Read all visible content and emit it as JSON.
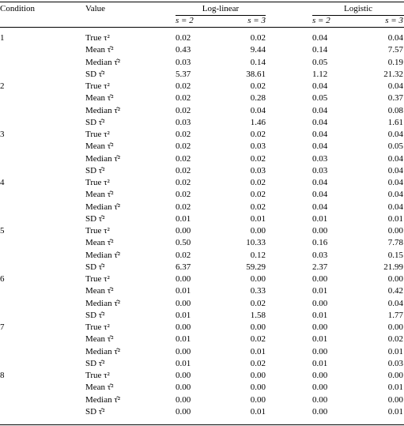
{
  "table": {
    "header": {
      "columns": [
        "Condition",
        "Value"
      ],
      "groups": [
        "Log-linear",
        "Logistic"
      ],
      "subcolumns": [
        "s = 2",
        "s = 3",
        "s = 2",
        "s = 3"
      ]
    },
    "rows": [
      {
        "condition": "1",
        "values": [
          {
            "label": "True τ²",
            "cells": [
              "0.02",
              "0.02",
              "0.04",
              "0.04"
            ]
          },
          {
            "label": "Mean τ̂²",
            "cells": [
              "0.43",
              "9.44",
              "0.14",
              "7.57"
            ]
          },
          {
            "label": "Median τ̂²",
            "cells": [
              "0.03",
              "0.14",
              "0.05",
              "0.19"
            ]
          },
          {
            "label": "SD τ̂²",
            "cells": [
              "5.37",
              "38.61",
              "1.12",
              "21.32"
            ]
          }
        ]
      },
      {
        "condition": "2",
        "values": [
          {
            "label": "True τ²",
            "cells": [
              "0.02",
              "0.02",
              "0.04",
              "0.04"
            ]
          },
          {
            "label": "Mean τ̂²",
            "cells": [
              "0.02",
              "0.28",
              "0.05",
              "0.37"
            ]
          },
          {
            "label": "Median τ̂²",
            "cells": [
              "0.02",
              "0.04",
              "0.04",
              "0.08"
            ]
          },
          {
            "label": "SD τ̂²",
            "cells": [
              "0.03",
              "1.46",
              "0.04",
              "1.61"
            ]
          }
        ]
      },
      {
        "condition": "3",
        "values": [
          {
            "label": "True τ²",
            "cells": [
              "0.02",
              "0.02",
              "0.04",
              "0.04"
            ]
          },
          {
            "label": "Mean τ̂²",
            "cells": [
              "0.02",
              "0.03",
              "0.04",
              "0.05"
            ]
          },
          {
            "label": "Median τ̂²",
            "cells": [
              "0.02",
              "0.02",
              "0.03",
              "0.04"
            ]
          },
          {
            "label": "SD τ̂²",
            "cells": [
              "0.02",
              "0.03",
              "0.03",
              "0.04"
            ]
          }
        ]
      },
      {
        "condition": "4",
        "values": [
          {
            "label": "True τ²",
            "cells": [
              "0.02",
              "0.02",
              "0.04",
              "0.04"
            ]
          },
          {
            "label": "Mean τ̂²",
            "cells": [
              "0.02",
              "0.02",
              "0.04",
              "0.04"
            ]
          },
          {
            "label": "Median τ̂²",
            "cells": [
              "0.02",
              "0.02",
              "0.04",
              "0.04"
            ]
          },
          {
            "label": "SD τ̂²",
            "cells": [
              "0.01",
              "0.01",
              "0.01",
              "0.01"
            ]
          }
        ]
      },
      {
        "condition": "5",
        "values": [
          {
            "label": "True τ²",
            "cells": [
              "0.00",
              "0.00",
              "0.00",
              "0.00"
            ]
          },
          {
            "label": "Mean τ̂²",
            "cells": [
              "0.50",
              "10.33",
              "0.16",
              "7.78"
            ]
          },
          {
            "label": "Median τ̂²",
            "cells": [
              "0.02",
              "0.12",
              "0.03",
              "0.15"
            ]
          },
          {
            "label": "SD τ̂²",
            "cells": [
              "6.37",
              "59.29",
              "2.37",
              "21.99"
            ]
          }
        ]
      },
      {
        "condition": "6",
        "values": [
          {
            "label": "True τ²",
            "cells": [
              "0.00",
              "0.00",
              "0.00",
              "0.00"
            ]
          },
          {
            "label": "Mean τ̂²",
            "cells": [
              "0.01",
              "0.33",
              "0.01",
              "0.42"
            ]
          },
          {
            "label": "Median τ̂²",
            "cells": [
              "0.00",
              "0.02",
              "0.00",
              "0.04"
            ]
          },
          {
            "label": "SD τ̂²",
            "cells": [
              "0.01",
              "1.58",
              "0.01",
              "1.77"
            ]
          }
        ]
      },
      {
        "condition": "7",
        "values": [
          {
            "label": "True τ²",
            "cells": [
              "0.00",
              "0.00",
              "0.00",
              "0.00"
            ]
          },
          {
            "label": "Mean τ̂²",
            "cells": [
              "0.01",
              "0.02",
              "0.01",
              "0.02"
            ]
          },
          {
            "label": "Median τ̂²",
            "cells": [
              "0.00",
              "0.01",
              "0.00",
              "0.01"
            ]
          },
          {
            "label": "SD τ̂²",
            "cells": [
              "0.01",
              "0.02",
              "0.01",
              "0.03"
            ]
          }
        ]
      },
      {
        "condition": "8",
        "values": [
          {
            "label": "True τ²",
            "cells": [
              "0.00",
              "0.00",
              "0.00",
              "0.00"
            ]
          },
          {
            "label": "Mean τ̂²",
            "cells": [
              "0.00",
              "0.00",
              "0.00",
              "0.01"
            ]
          },
          {
            "label": "Median τ̂²",
            "cells": [
              "0.00",
              "0.00",
              "0.00",
              "0.00"
            ]
          },
          {
            "label": "SD τ̂²",
            "cells": [
              "0.00",
              "0.01",
              "0.00",
              "0.01"
            ]
          }
        ]
      }
    ]
  }
}
